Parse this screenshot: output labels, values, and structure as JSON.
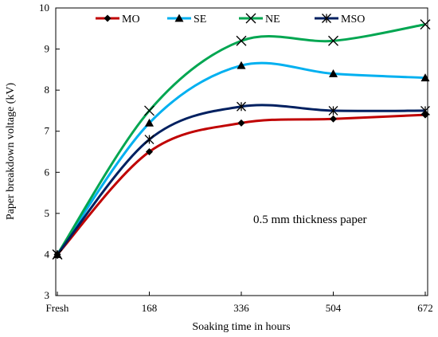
{
  "chart_data": {
    "type": "line",
    "categories": [
      "Fresh",
      "168",
      "336",
      "504",
      "672"
    ],
    "xlabel": "Soaking time in hours",
    "ylabel": "Paper breakdown voltage (kV)",
    "ylim": [
      3,
      10
    ],
    "yticks": [
      "3",
      "4",
      "5",
      "6",
      "7",
      "8",
      "9",
      "10"
    ],
    "grid": false,
    "legend_position": "top",
    "annotation": "0.5 mm thickness paper",
    "series": [
      {
        "name": "MO",
        "marker": "diamond",
        "color": "#C00000",
        "values": [
          4.0,
          6.5,
          7.2,
          7.3,
          7.4
        ]
      },
      {
        "name": "SE",
        "marker": "triangle",
        "color": "#00B0F0",
        "values": [
          4.0,
          7.2,
          8.6,
          8.4,
          8.3
        ]
      },
      {
        "name": "NE",
        "marker": "x",
        "color": "#00A651",
        "values": [
          4.0,
          7.5,
          9.2,
          9.2,
          9.6
        ]
      },
      {
        "name": "MSO",
        "marker": "asterisk",
        "color": "#002060",
        "values": [
          4.0,
          6.8,
          7.6,
          7.5,
          7.5
        ]
      }
    ]
  }
}
